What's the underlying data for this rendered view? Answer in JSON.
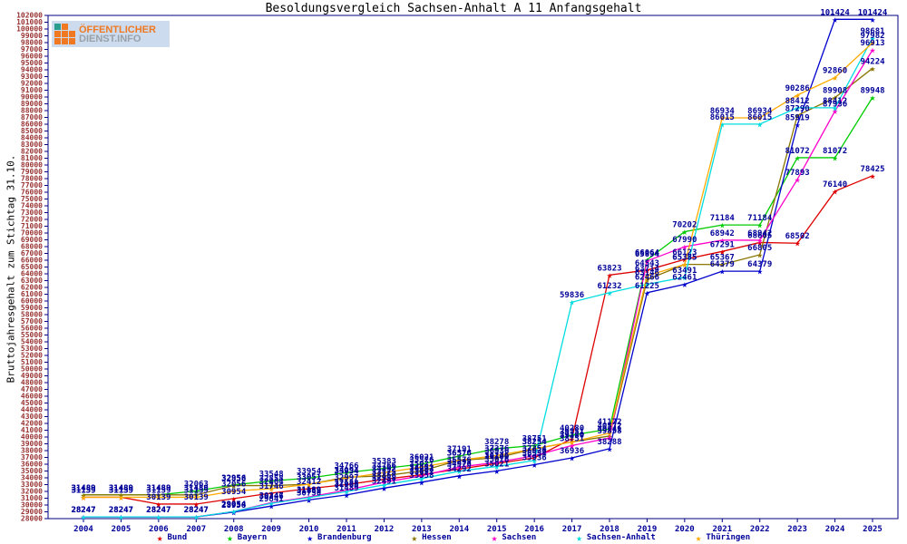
{
  "title": "Besoldungsvergleich Sachsen-Anhalt A 11 Anfangsgehalt",
  "logo": {
    "line1": "ÖFFENTLICHER",
    "line2": "DIENST.INFO"
  },
  "y_axis_title": "Bruttojahresgehalt zum Stichtag 31.10.",
  "colors": {
    "frame": "#000080",
    "y_tick_text": "#993333",
    "x_tick_text": "#000099",
    "data_label": "#000099"
  },
  "chart_data": {
    "type": "line",
    "x": [
      2004,
      2005,
      2006,
      2007,
      2008,
      2009,
      2010,
      2011,
      2012,
      2013,
      2014,
      2015,
      2016,
      2017,
      2018,
      2019,
      2020,
      2021,
      2022,
      2023,
      2024,
      2025
    ],
    "ylim": [
      28000,
      102000
    ],
    "y_tick_step": 1000,
    "grid": false,
    "legend_position": "bottom",
    "marker": "star",
    "series": [
      {
        "name": "Bund",
        "color": "#dd0000",
        "values": [
          31139,
          31139,
          30139,
          30139,
          30954,
          31746,
          32412,
          32997,
          33775,
          34471,
          35293,
          36100,
          36936,
          39751,
          63823,
          64543,
          66123,
          67291,
          68605,
          68502,
          76140,
          78425
        ]
      },
      {
        "name": "Bayern",
        "color": "#00cc00",
        "values": [
          31489,
          31489,
          31489,
          32063,
          32956,
          33548,
          33954,
          34766,
          35383,
          36021,
          37191,
          38278,
          38751,
          40280,
          41172,
          66064,
          70202,
          71184,
          71184,
          81072,
          81072,
          89948
        ]
      },
      {
        "name": "Brandenburg",
        "color": "#0000cc",
        "values": [
          28247,
          28247,
          28247,
          28247,
          28958,
          29841,
          30750,
          31489,
          32491,
          33358,
          34292,
          35021,
          35936,
          36936,
          38288,
          61225,
          62461,
          64379,
          64379,
          85919,
          101424,
          101424
        ]
      },
      {
        "name": "Hessen",
        "color": "#8a7500",
        "values": [
          31489,
          31489,
          31489,
          31489,
          32858,
          32858,
          33051,
          34094,
          34292,
          35021,
          36576,
          36936,
          38254,
          39280,
          40141,
          63146,
          65385,
          65367,
          66805,
          87290,
          89908,
          94224
        ]
      },
      {
        "name": "Sachsen",
        "color": "#ff00cc",
        "values": [
          28247,
          28247,
          28247,
          28247,
          29054,
          30347,
          31189,
          32188,
          33358,
          34292,
          35576,
          36276,
          37254,
          38751,
          39858,
          65894,
          67990,
          68942,
          68942,
          77893,
          87936,
          96913
        ]
      },
      {
        "name": "Sachsen-Anhalt",
        "color": "#00dde0",
        "values": [
          28247,
          28247,
          28247,
          28247,
          29054,
          30246,
          31089,
          31988,
          32958,
          33892,
          34976,
          35676,
          36554,
          59836,
          61232,
          62466,
          63491,
          86015,
          86015,
          88412,
          88412,
          98681
        ]
      },
      {
        "name": "Thüringen",
        "color": "#ffaa00",
        "values": [
          31139,
          31139,
          31139,
          31139,
          32056,
          32404,
          33051,
          33954,
          34766,
          35576,
          36576,
          37276,
          38254,
          39280,
          40572,
          63714,
          65385,
          86934,
          86934,
          90286,
          92860,
          97982
        ]
      }
    ]
  }
}
